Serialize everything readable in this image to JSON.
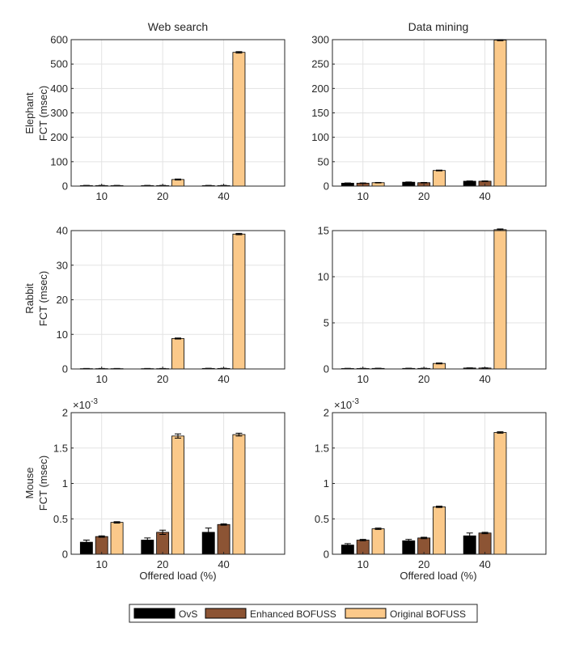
{
  "figure": {
    "columns": [
      "Web search",
      "Data mining"
    ],
    "rows": [
      {
        "line1": "Elephant",
        "line2": "FCT (msec)"
      },
      {
        "line1": "Rabbit",
        "line2": "FCT (msec)"
      },
      {
        "line1": "Mouse",
        "line2": "FCT (msec)"
      }
    ],
    "xlabel": "Offered load (%)",
    "legend": [
      "OvS",
      "Enhanced BOFUSS",
      "Original BOFUSS"
    ],
    "colors": [
      "#000000",
      "#8c5434",
      "#fbc98a"
    ],
    "exponent_label": "×10",
    "exponent_power": "-3"
  },
  "chart_data": [
    {
      "type": "bar",
      "panel": "Elephant - Web search",
      "categories": [
        "10",
        "20",
        "40"
      ],
      "ylim": [
        0,
        600
      ],
      "yticks": [
        0,
        100,
        200,
        300,
        400,
        500,
        600
      ],
      "tick_labels": [
        "0",
        "100",
        "200",
        "300",
        "400",
        "500",
        "600"
      ],
      "grid": true,
      "series": [
        {
          "name": "OvS",
          "values": [
            2,
            2,
            2
          ]
        },
        {
          "name": "Enhanced BOFUSS",
          "values": [
            2,
            2,
            2
          ]
        },
        {
          "name": "Original BOFUSS",
          "values": [
            2,
            27,
            548
          ]
        }
      ],
      "errors": [
        [
          1,
          1,
          1
        ],
        [
          1,
          1,
          1
        ],
        [
          1,
          2,
          3
        ]
      ]
    },
    {
      "type": "bar",
      "panel": "Elephant - Data mining",
      "categories": [
        "10",
        "20",
        "40"
      ],
      "ylim": [
        0,
        300
      ],
      "yticks": [
        0,
        50,
        100,
        150,
        200,
        250,
        300
      ],
      "tick_labels": [
        "0",
        "50",
        "100",
        "150",
        "200",
        "250",
        "300"
      ],
      "grid": true,
      "series": [
        {
          "name": "OvS",
          "values": [
            6,
            8,
            10
          ]
        },
        {
          "name": "Enhanced BOFUSS",
          "values": [
            6,
            7,
            10
          ]
        },
        {
          "name": "Original BOFUSS",
          "values": [
            7,
            32,
            299
          ]
        }
      ],
      "errors": [
        [
          0.5,
          0.5,
          0.6
        ],
        [
          0.5,
          0.5,
          0.6
        ],
        [
          0.5,
          0.8,
          1.2
        ]
      ]
    },
    {
      "type": "bar",
      "panel": "Rabbit - Web search",
      "categories": [
        "10",
        "20",
        "40"
      ],
      "ylim": [
        0,
        40
      ],
      "yticks": [
        0,
        10,
        20,
        30,
        40
      ],
      "tick_labels": [
        "0",
        "10",
        "20",
        "30",
        "40"
      ],
      "grid": true,
      "series": [
        {
          "name": "OvS",
          "values": [
            0.1,
            0.1,
            0.15
          ]
        },
        {
          "name": "Enhanced BOFUSS",
          "values": [
            0.1,
            0.1,
            0.15
          ]
        },
        {
          "name": "Original BOFUSS",
          "values": [
            0.1,
            8.8,
            39.0
          ]
        }
      ],
      "errors": [
        [
          0.05,
          0.05,
          0.05
        ],
        [
          0.05,
          0.05,
          0.05
        ],
        [
          0.05,
          0.15,
          0.2
        ]
      ]
    },
    {
      "type": "bar",
      "panel": "Rabbit - Data mining",
      "categories": [
        "10",
        "20",
        "40"
      ],
      "ylim": [
        0,
        15
      ],
      "yticks": [
        0,
        5,
        10,
        15
      ],
      "tick_labels": [
        "0",
        "5",
        "10",
        "15"
      ],
      "grid": true,
      "series": [
        {
          "name": "OvS",
          "values": [
            0.05,
            0.06,
            0.1
          ]
        },
        {
          "name": "Enhanced BOFUSS",
          "values": [
            0.05,
            0.06,
            0.1
          ]
        },
        {
          "name": "Original BOFUSS",
          "values": [
            0.06,
            0.6,
            15.1
          ]
        }
      ],
      "errors": [
        [
          0.02,
          0.02,
          0.02
        ],
        [
          0.02,
          0.02,
          0.02
        ],
        [
          0.02,
          0.05,
          0.08
        ]
      ]
    },
    {
      "type": "bar",
      "panel": "Mouse - Web search",
      "categories": [
        "10",
        "20",
        "40"
      ],
      "ylim": [
        0,
        0.002
      ],
      "yticks": [
        0,
        0.0005,
        0.001,
        0.0015,
        0.002
      ],
      "tick_labels": [
        "0",
        "0.5",
        "1",
        "1.5",
        "2"
      ],
      "grid": true,
      "series": [
        {
          "name": "OvS",
          "values": [
            0.00017,
            0.0002,
            0.00031
          ]
        },
        {
          "name": "Enhanced BOFUSS",
          "values": [
            0.00025,
            0.00031,
            0.00042
          ]
        },
        {
          "name": "Original BOFUSS",
          "values": [
            0.00045,
            0.00167,
            0.00169
          ]
        }
      ],
      "errors": [
        [
          3e-05,
          3e-05,
          6e-05
        ],
        [
          1e-05,
          3e-05,
          1e-05
        ],
        [
          1e-05,
          3e-05,
          2e-05
        ]
      ]
    },
    {
      "type": "bar",
      "panel": "Mouse - Data mining",
      "categories": [
        "10",
        "20",
        "40"
      ],
      "ylim": [
        0,
        0.002
      ],
      "yticks": [
        0,
        0.0005,
        0.001,
        0.0015,
        0.002
      ],
      "tick_labels": [
        "0",
        "0.5",
        "1",
        "1.5",
        "2"
      ],
      "grid": true,
      "series": [
        {
          "name": "OvS",
          "values": [
            0.00013,
            0.00019,
            0.00026
          ]
        },
        {
          "name": "Enhanced BOFUSS",
          "values": [
            0.0002,
            0.00023,
            0.0003
          ]
        },
        {
          "name": "Original BOFUSS",
          "values": [
            0.00036,
            0.00067,
            0.00172
          ]
        }
      ],
      "errors": [
        [
          2e-05,
          2e-05,
          4e-05
        ],
        [
          1e-05,
          1e-05,
          1e-05
        ],
        [
          1e-05,
          1e-05,
          1e-05
        ]
      ]
    }
  ]
}
